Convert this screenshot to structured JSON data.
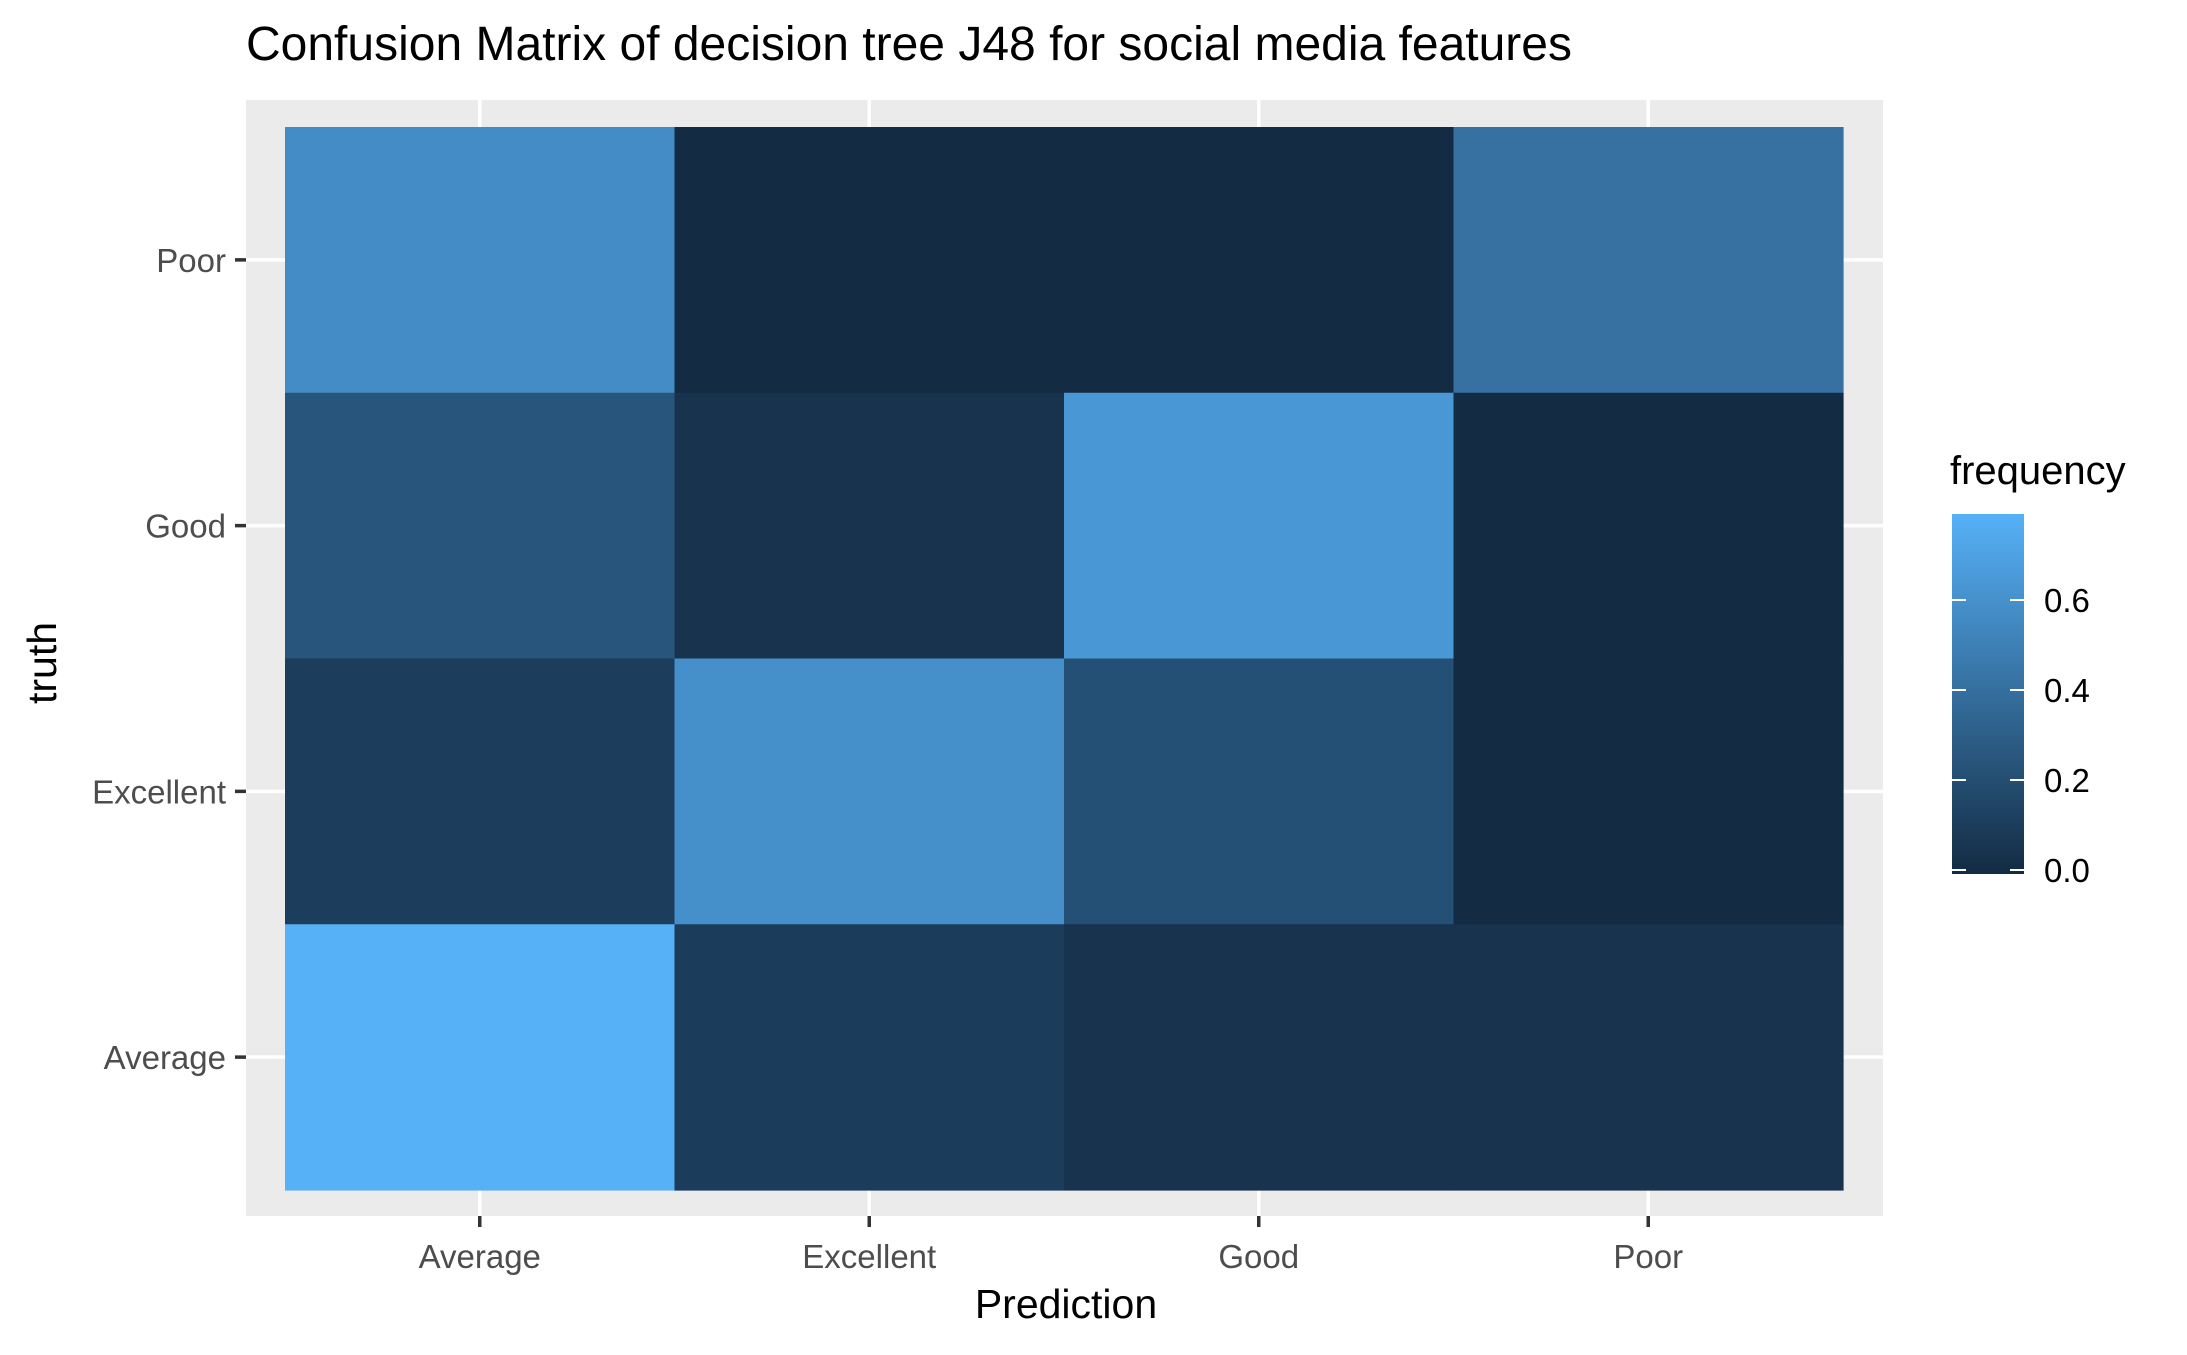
{
  "chart_data": {
    "type": "heatmap",
    "title": "Confusion Matrix of  decision tree J48 for social media features",
    "xlabel": "Prediction",
    "ylabel": "truth",
    "x_categories": [
      "Average",
      "Excellent",
      "Good",
      "Poor"
    ],
    "y_categories": [
      "Average",
      "Excellent",
      "Good",
      "Poor"
    ],
    "cells": [
      {
        "truth": "Poor",
        "prediction": "Average",
        "value": 0.58
      },
      {
        "truth": "Poor",
        "prediction": "Excellent",
        "value": 0.0
      },
      {
        "truth": "Poor",
        "prediction": "Good",
        "value": 0.0
      },
      {
        "truth": "Poor",
        "prediction": "Poor",
        "value": 0.42
      },
      {
        "truth": "Good",
        "prediction": "Average",
        "value": 0.25
      },
      {
        "truth": "Good",
        "prediction": "Excellent",
        "value": 0.05
      },
      {
        "truth": "Good",
        "prediction": "Good",
        "value": 0.65
      },
      {
        "truth": "Good",
        "prediction": "Poor",
        "value": 0.0
      },
      {
        "truth": "Excellent",
        "prediction": "Average",
        "value": 0.11
      },
      {
        "truth": "Excellent",
        "prediction": "Excellent",
        "value": 0.6
      },
      {
        "truth": "Excellent",
        "prediction": "Good",
        "value": 0.22
      },
      {
        "truth": "Excellent",
        "prediction": "Poor",
        "value": 0.0
      },
      {
        "truth": "Average",
        "prediction": "Average",
        "value": 0.8
      },
      {
        "truth": "Average",
        "prediction": "Excellent",
        "value": 0.1
      },
      {
        "truth": "Average",
        "prediction": "Good",
        "value": 0.05
      },
      {
        "truth": "Average",
        "prediction": "Poor",
        "value": 0.05
      }
    ],
    "legend": {
      "title": "frequency",
      "ticks": [
        "0.0",
        "0.2",
        "0.4",
        "0.6"
      ],
      "tick_values": [
        0.0,
        0.2,
        0.4,
        0.6
      ],
      "range": [
        0.0,
        0.8
      ],
      "low_color": "#132B43",
      "high_color": "#56B1F7",
      "placement": "right"
    },
    "panel_background": "#EBEBEB",
    "grid": true
  }
}
